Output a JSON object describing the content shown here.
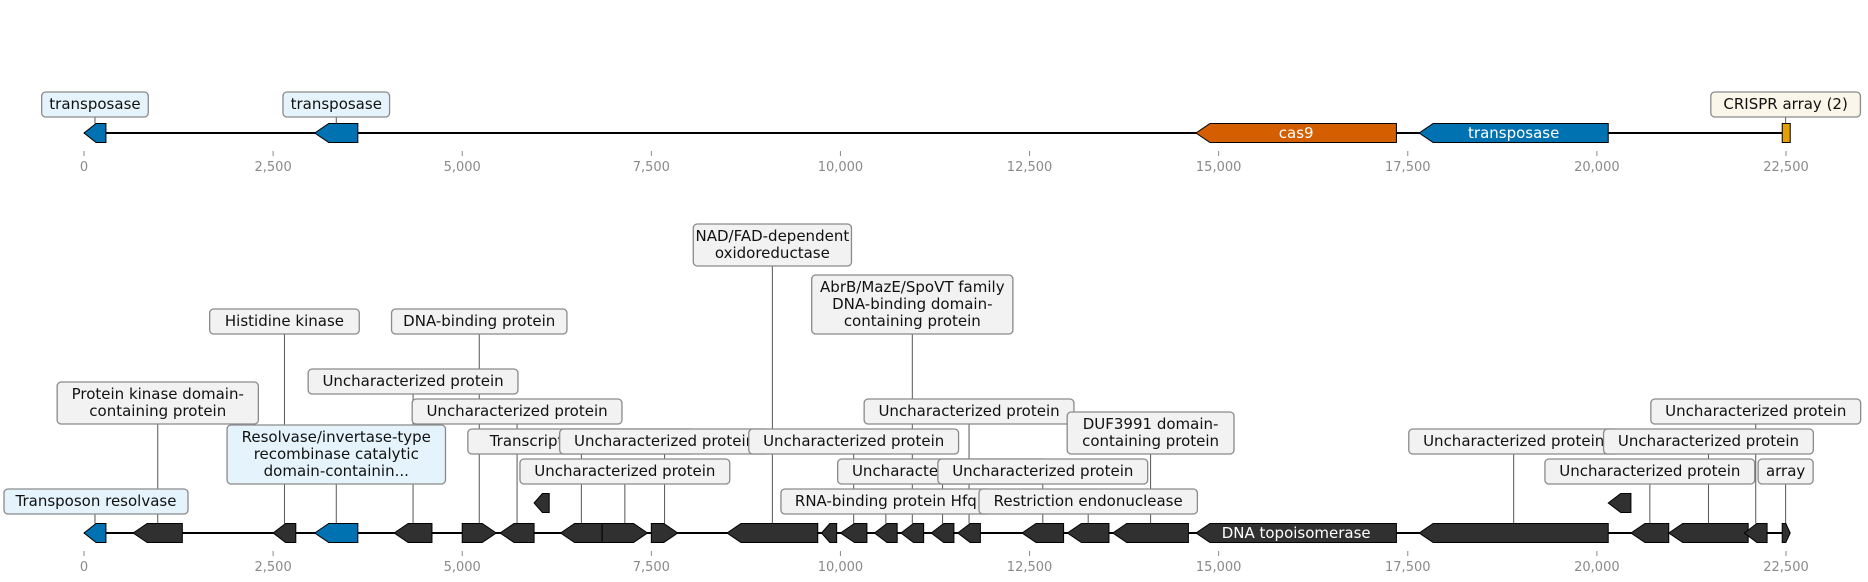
{
  "axis": {
    "min": 0,
    "max": 22500,
    "ticks": [
      0,
      2500,
      5000,
      7500,
      10000,
      12500,
      15000,
      17500,
      20000,
      22500
    ],
    "tick_labels": [
      "0",
      "2,500",
      "5,000",
      "7,500",
      "10,000",
      "12,500",
      "15,000",
      "17,500",
      "20,000",
      "22,500"
    ]
  },
  "colors": {
    "transposase": "#0072b2",
    "cas9": "#d55e00",
    "crispr": "#e69f00",
    "other": "#303030"
  },
  "track_top": {
    "genes": [
      {
        "name": "transposase-1",
        "start": 0,
        "end": 290,
        "strand": -1,
        "color": "#0072b2",
        "label": "transposase",
        "label_pos": "above"
      },
      {
        "name": "transposase-2",
        "start": 3050,
        "end": 3620,
        "strand": -1,
        "color": "#0072b2",
        "label": "transposase",
        "label_pos": "above"
      },
      {
        "name": "cas9",
        "start": 14700,
        "end": 17350,
        "strand": -1,
        "color": "#d55e00",
        "label": "cas9",
        "label_pos": "inside"
      },
      {
        "name": "transposase-3",
        "start": 17650,
        "end": 20150,
        "strand": -1,
        "color": "#0072b2",
        "label": "transposase",
        "label_pos": "inside"
      },
      {
        "name": "crispr-array",
        "start": 22450,
        "end": 22540,
        "strand": 0,
        "color": "#e69f00",
        "label": "CRISPR array (2)",
        "label_pos": "above"
      }
    ]
  },
  "track_bottom": {
    "genes": [
      {
        "start": 0,
        "end": 290,
        "strand": -1,
        "color": "#0072b2",
        "label": "Transposon resolvase",
        "level": 0
      },
      {
        "start": 650,
        "end": 1300,
        "strand": -1,
        "color": "#303030",
        "label": "Protein kinase domain-\ncontaining protein",
        "level": 3
      },
      {
        "start": 2500,
        "end": 2800,
        "strand": -1,
        "color": "#303030",
        "label": "Histidine kinase",
        "level": 5
      },
      {
        "start": 3050,
        "end": 3620,
        "strand": -1,
        "color": "#0072b2",
        "label": "Resolvase/invertase-type\nrecombinase catalytic\ndomain-containin...",
        "level": 1
      },
      {
        "start": 4100,
        "end": 4600,
        "strand": -1,
        "color": "#303030",
        "label": "Uncharacterized protein",
        "level": 4
      },
      {
        "start": 5000,
        "end": 5450,
        "strand": 1,
        "color": "#303030",
        "label": "DNA-binding protein",
        "level": 5
      },
      {
        "start": 5500,
        "end": 5950,
        "strand": -1,
        "color": "#303030",
        "label": "Uncharacterized protein",
        "level": 3
      },
      {
        "start": 5950,
        "end": 6150,
        "strand": -1,
        "color": "#303030",
        "label": "",
        "level": 1
      },
      {
        "start": 6300,
        "end": 6850,
        "strand": -1,
        "color": "#303030",
        "label": "Transcriptional regulator",
        "level": 2
      },
      {
        "start": 6850,
        "end": 7450,
        "strand": 1,
        "color": "#303030",
        "label": "Uncharacterized protein",
        "level": 1
      },
      {
        "start": 7500,
        "end": 7850,
        "strand": 1,
        "color": "#303030",
        "label": "Uncharacterized protein",
        "level": 2
      },
      {
        "start": 8500,
        "end": 9700,
        "strand": -1,
        "color": "#303030",
        "label": "NAD/FAD-dependent\noxidoreductase",
        "level": 8
      },
      {
        "start": 9750,
        "end": 9950,
        "strand": -1,
        "color": "#303030",
        "label": "",
        "level": 0
      },
      {
        "start": 10000,
        "end": 10350,
        "strand": -1,
        "color": "#303030",
        "label": "Uncharacterized protein",
        "level": 2
      },
      {
        "start": 10450,
        "end": 10750,
        "strand": -1,
        "color": "#303030",
        "label": "RNA-binding protein Hfq",
        "level": 0
      },
      {
        "start": 10800,
        "end": 11100,
        "strand": -1,
        "color": "#303030",
        "label": "AbrB/MazE/SpoVT family\nDNA-binding domain-\ncontaining protein",
        "level": 5
      },
      {
        "start": 11200,
        "end": 11500,
        "strand": -1,
        "color": "#303030",
        "label": "Uncharacterized protein",
        "level": 1
      },
      {
        "start": 11550,
        "end": 11850,
        "strand": -1,
        "color": "#303030",
        "label": "Uncharacterized protein",
        "level": 3
      },
      {
        "start": 12400,
        "end": 12950,
        "strand": -1,
        "color": "#303030",
        "label": "Uncharacterized protein",
        "level": 1
      },
      {
        "start": 13000,
        "end": 13550,
        "strand": -1,
        "color": "#303030",
        "label": "Restriction endonuclease",
        "level": 0
      },
      {
        "start": 13600,
        "end": 14600,
        "strand": -1,
        "color": "#303030",
        "label": "DUF3991 domain-\ncontaining protein",
        "level": 2
      },
      {
        "start": 14700,
        "end": 17350,
        "strand": -1,
        "color": "#303030",
        "label": "DNA topoisomerase",
        "level": -1
      },
      {
        "start": 17650,
        "end": 20150,
        "strand": -1,
        "color": "#303030",
        "label": "Uncharacterized protein",
        "level": 2
      },
      {
        "start": 20150,
        "end": 20450,
        "strand": -1,
        "color": "#303030",
        "label": "",
        "level": 1
      },
      {
        "start": 20450,
        "end": 20950,
        "strand": -1,
        "color": "#303030",
        "label": "Uncharacterized protein",
        "level": 1
      },
      {
        "start": 20950,
        "end": 22000,
        "strand": -1,
        "color": "#303030",
        "label": "Uncharacterized protein",
        "level": 2
      },
      {
        "start": 21950,
        "end": 22250,
        "strand": -1,
        "color": "#303030",
        "label": "Uncharacterized protein",
        "level": 3
      },
      {
        "start": 22450,
        "end": 22540,
        "strand": 1,
        "color": "#303030",
        "label": "array",
        "level": 1
      }
    ]
  }
}
